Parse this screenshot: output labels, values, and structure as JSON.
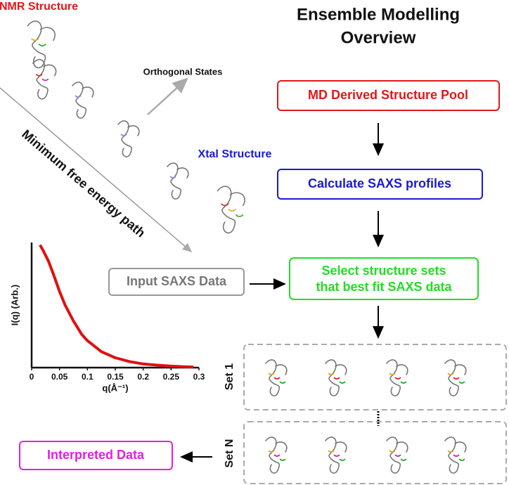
{
  "header": {
    "title_lines": [
      "Ensemble Modelling",
      "Overview"
    ]
  },
  "labels": {
    "nmr": "NMR Structure",
    "orthogonal": "Orthogonal States",
    "xtal": "Xtal Structure",
    "path": "Minimum free energy path"
  },
  "boxes": {
    "pool": "MD Derived Structure Pool",
    "saxs_profiles": "Calculate SAXS profiles",
    "select_lines": [
      "Select structure sets",
      "that best fit SAXS data"
    ],
    "input": "Input SAXS Data",
    "set1": "Set 1",
    "setn": "Set N",
    "interpreted": "Interpreted Data"
  },
  "chart_data": {
    "type": "line",
    "xlabel": "q(Å⁻¹)",
    "ylabel": "I(q) (Arb.)",
    "color": "#e01010",
    "x": [
      0.015,
      0.02,
      0.03,
      0.04,
      0.05,
      0.06,
      0.075,
      0.09,
      0.1,
      0.125,
      0.15,
      0.175,
      0.2,
      0.225,
      0.25,
      0.27,
      0.29
    ],
    "values": [
      1.0,
      0.96,
      0.87,
      0.75,
      0.62,
      0.51,
      0.38,
      0.27,
      0.22,
      0.13,
      0.08,
      0.05,
      0.03,
      0.02,
      0.012,
      0.008,
      0.005
    ],
    "xlim": [
      0,
      0.3
    ],
    "ylim": [
      0,
      1.02
    ],
    "xticks": [
      0,
      0.05,
      0.1,
      0.15,
      0.2,
      0.25,
      0.3
    ]
  }
}
